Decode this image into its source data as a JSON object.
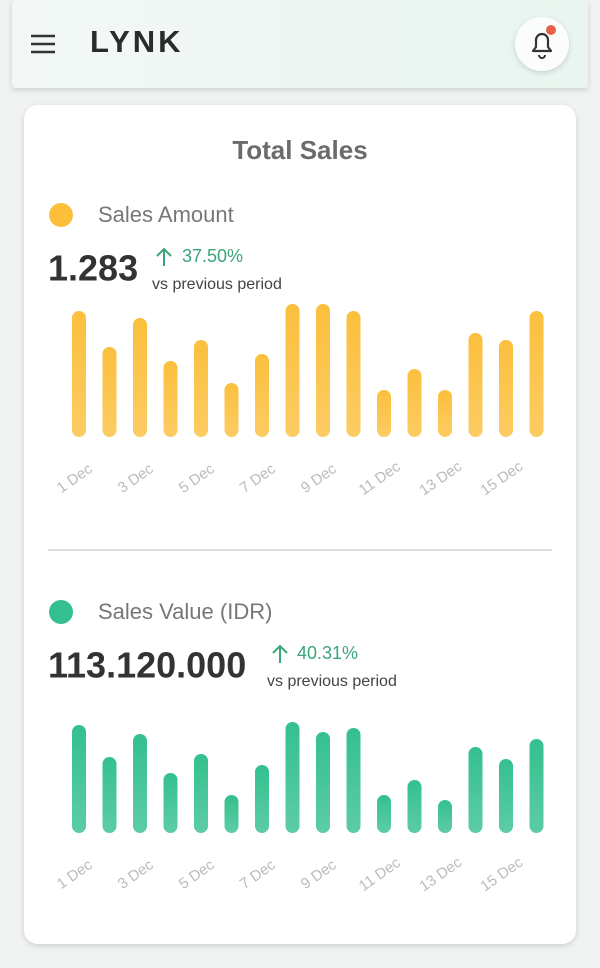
{
  "header": {
    "logo": "LYNK"
  },
  "card": {
    "title": "Total Sales"
  },
  "chart_data": [
    {
      "type": "bar",
      "title": "Sales Amount",
      "total": "1.283",
      "change": "37.50%",
      "caption": "vs previous period",
      "color": "#fbbf3c",
      "categories": [
        "1 Dec",
        null,
        "3 Dec",
        null,
        "5 Dec",
        null,
        "7 Dec",
        null,
        "9 Dec",
        null,
        "11 Dec",
        null,
        "13 Dec",
        null,
        "15 Dec",
        null
      ],
      "values": [
        126,
        90,
        119,
        76,
        97,
        54,
        83,
        133,
        133,
        126,
        47,
        68,
        47,
        104,
        97,
        126
      ]
    },
    {
      "type": "bar",
      "title": "Sales Value (IDR)",
      "total": "113.120.000",
      "change": "40.31%",
      "caption": "vs previous period",
      "color": "#34c08e",
      "categories": [
        "1 Dec",
        null,
        "3 Dec",
        null,
        "5 Dec",
        null,
        "7 Dec",
        null,
        "9 Dec",
        null,
        "11 Dec",
        null,
        "13 Dec",
        null,
        "15 Dec",
        null
      ],
      "values": [
        108,
        76,
        99,
        60,
        79,
        38,
        68,
        111,
        101,
        105,
        38,
        53,
        33,
        86,
        74,
        94
      ]
    }
  ]
}
